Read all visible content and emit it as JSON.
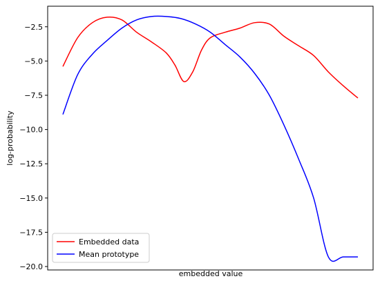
{
  "chart_data": {
    "type": "line",
    "title": "",
    "xlabel": "embedded value",
    "ylabel": "log-probability",
    "xlim": [
      0,
      1
    ],
    "ylim": [
      -20.25,
      -1.0
    ],
    "x_ticks_shown": false,
    "y_ticks": [
      -2.5,
      -5.0,
      -7.5,
      -10.0,
      -12.5,
      -15.0,
      -17.5,
      -20.0
    ],
    "y_tick_labels": [
      "−2.5",
      "−5.0",
      "−7.5",
      "−10.0",
      "−12.5",
      "−15.0",
      "−17.5",
      "−20.0"
    ],
    "grid": false,
    "legend": {
      "placement": "lower-left"
    },
    "series": [
      {
        "name": "Embedded data",
        "color": "#ff0000",
        "x": [
          0.0,
          0.05,
          0.1,
          0.15,
          0.2,
          0.25,
          0.3,
          0.35,
          0.38,
          0.41,
          0.44,
          0.47,
          0.5,
          0.55,
          0.6,
          0.65,
          0.7,
          0.75,
          0.8,
          0.85,
          0.9,
          0.95,
          1.0
        ],
        "values": [
          -5.4,
          -3.3,
          -2.2,
          -1.8,
          -2.0,
          -2.9,
          -3.6,
          -4.4,
          -5.3,
          -6.5,
          -5.8,
          -4.2,
          -3.3,
          -2.9,
          -2.6,
          -2.2,
          -2.3,
          -3.2,
          -3.9,
          -4.6,
          -5.8,
          -6.8,
          -7.7
        ]
      },
      {
        "name": "Mean prototype",
        "color": "#0000ff",
        "x": [
          0.0,
          0.05,
          0.1,
          0.15,
          0.2,
          0.25,
          0.3,
          0.35,
          0.4,
          0.45,
          0.5,
          0.55,
          0.6,
          0.65,
          0.7,
          0.75,
          0.8,
          0.85,
          0.9,
          0.95,
          1.0
        ],
        "values": [
          -8.9,
          -6.0,
          -4.5,
          -3.5,
          -2.6,
          -2.0,
          -1.75,
          -1.75,
          -1.9,
          -2.3,
          -2.9,
          -3.8,
          -4.7,
          -5.9,
          -7.5,
          -9.7,
          -12.2,
          -15.0,
          -19.3,
          -19.3,
          -19.3
        ]
      }
    ]
  }
}
